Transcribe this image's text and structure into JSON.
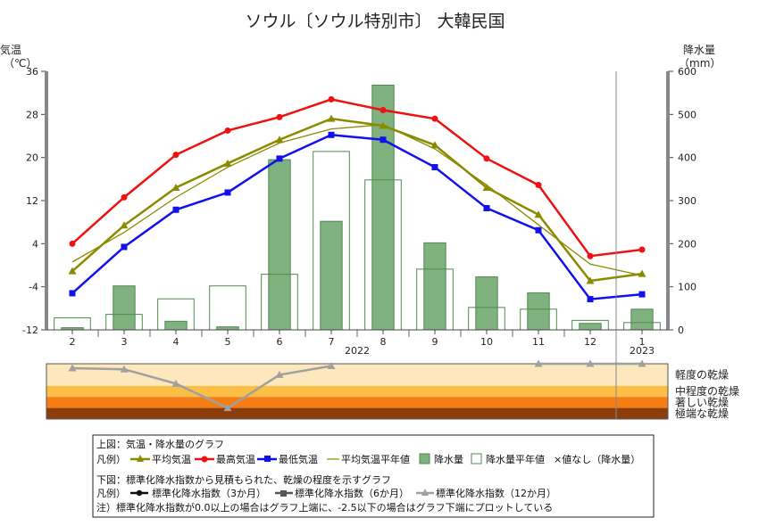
{
  "title": "ソウル〔ソウル特別市〕 大韓民国",
  "y_left_label": [
    "気温",
    "（℃）"
  ],
  "y_right_label": [
    "降水量",
    "（mm）"
  ],
  "year_labels": [
    {
      "text": "2022",
      "after_index": 5
    },
    {
      "text": "2023",
      "after_index": 11
    }
  ],
  "colors": {
    "mean": "#8b8b00",
    "max": "#ee1111",
    "min": "#1111ee",
    "normal_temp": "#8b8b00",
    "precip_fill": "#7fb27f",
    "precip_edge": "#4e8a4e",
    "spi12": "#a0a0a0",
    "spi6": "#555555",
    "spi3": "#111111",
    "dry_bands": [
      "#fde7bd",
      "#fcbf46",
      "#f57d14",
      "#8b3d0a"
    ]
  },
  "dry_labels": [
    "軽度の乾燥",
    "中程度の乾燥",
    "著しい乾燥",
    "極端な乾燥"
  ],
  "legend": {
    "top_title": "上図：気温・降水量のグラフ",
    "top_row_prefix": "凡例）",
    "top_items": [
      "平均気温",
      "最高気温",
      "最低気温",
      "平均気温平年値",
      "降水量",
      "降水量平年値"
    ],
    "no_value_note": "×値なし（降水量）",
    "bottom_title": "下図：標準化降水指数から見積もられた、乾燥の程度を示すグラフ",
    "bottom_row_prefix": "凡例）",
    "bottom_items": [
      "標準化降水指数（3か月）",
      "標準化降水指数（6か月）",
      "標準化降水指数（12か月）"
    ],
    "note": "注）標準化降水指数が0.0以上の場合はグラフ上端に、-2.5以下の場合はグラフ下端にプロットしている"
  },
  "chart_data": {
    "type": "line+bar",
    "categories": [
      "2",
      "3",
      "4",
      "5",
      "6",
      "7",
      "8",
      "9",
      "10",
      "11",
      "12",
      "1"
    ],
    "y_left": {
      "min": -12,
      "max": 36,
      "ticks": [
        -12,
        -4,
        4,
        12,
        20,
        28,
        36
      ],
      "unit": "℃"
    },
    "y_right": {
      "min": 0,
      "max": 600,
      "ticks": [
        0,
        100,
        200,
        300,
        400,
        500,
        600
      ],
      "unit": "mm"
    },
    "series": [
      {
        "name": "平均気温",
        "type": "line",
        "axis": "left",
        "marker": "triangle",
        "values": [
          -1.1,
          7.4,
          14.4,
          18.9,
          23.3,
          27.2,
          25.9,
          22.3,
          14.4,
          9.4,
          -2.9,
          -1.6
        ]
      },
      {
        "name": "最高気温",
        "type": "line",
        "axis": "left",
        "marker": "circle",
        "values": [
          4.0,
          12.6,
          20.5,
          25.0,
          27.5,
          30.8,
          28.8,
          27.2,
          19.8,
          14.9,
          1.7,
          2.9
        ]
      },
      {
        "name": "最低気温",
        "type": "line",
        "axis": "left",
        "marker": "square",
        "values": [
          -5.2,
          3.4,
          10.3,
          13.5,
          19.8,
          24.2,
          23.3,
          18.2,
          10.6,
          6.5,
          -6.3,
          -5.4
        ]
      },
      {
        "name": "平均気温平年値",
        "type": "line",
        "axis": "left",
        "marker": "none",
        "values": [
          0.6,
          6.1,
          12.6,
          18.2,
          22.7,
          25.3,
          26.1,
          21.6,
          14.9,
          7.5,
          0.2,
          -1.9
        ]
      },
      {
        "name": "降水量",
        "type": "bar",
        "axis": "right",
        "values": [
          5,
          102,
          20,
          7,
          395,
          252,
          568,
          202,
          123,
          86,
          15,
          48
        ]
      },
      {
        "name": "降水量平年値",
        "type": "bar-outline",
        "axis": "right",
        "values": [
          28,
          36,
          72,
          102,
          129,
          414,
          348,
          141,
          52,
          48,
          22,
          17
        ]
      }
    ],
    "dryness": {
      "levels": [
        0,
        -1,
        -1.5,
        -2,
        -2.5
      ],
      "series": [
        {
          "name": "標準化降水指数（12か月）",
          "values": [
            -0.2,
            -0.25,
            -0.9,
            -2.0,
            -0.5,
            -0.1,
            null,
            null,
            null,
            0.0,
            0.0,
            0.0
          ]
        }
      ]
    }
  }
}
